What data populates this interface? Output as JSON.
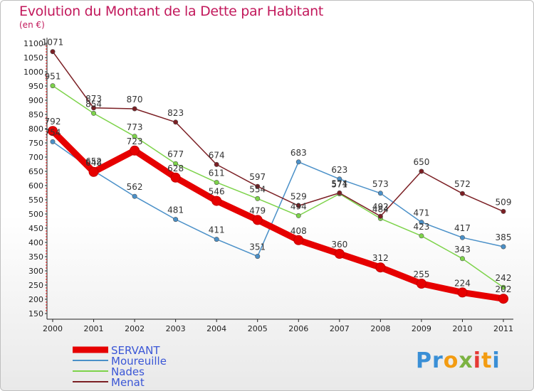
{
  "title": "Evolution du Montant de la Dette par Habitant",
  "subtitle": "(en €)",
  "logo": {
    "letters": [
      "P",
      "r",
      "o",
      "x",
      "i",
      "t",
      "i"
    ],
    "colors": [
      "#3a8fd6",
      "#3a8fd6",
      "#f39c12",
      "#7cb342",
      "#e53935",
      "#f39c12",
      "#3a8fd6"
    ]
  },
  "chart_data": {
    "type": "line",
    "x": [
      "2000",
      "2001",
      "2002",
      "2003",
      "2004",
      "2005",
      "2006",
      "2007",
      "2008",
      "2009",
      "2010",
      "2011"
    ],
    "ylim": [
      150,
      1100
    ],
    "yticks": [
      150,
      200,
      250,
      300,
      350,
      400,
      450,
      500,
      550,
      600,
      650,
      700,
      750,
      800,
      850,
      900,
      950,
      1000,
      1050,
      1100
    ],
    "grid": false,
    "legend_position": "bottom-left",
    "series": [
      {
        "name": "Moureuille",
        "color": "#4a90c8",
        "values": [
          754,
          652,
          562,
          481,
          411,
          351,
          683,
          623,
          573,
          471,
          417,
          385
        ],
        "labels": [
          "754",
          "652",
          "562",
          "481",
          "411",
          "351",
          "683",
          "623",
          "573",
          "471",
          "417",
          "385"
        ]
      },
      {
        "name": "Nades",
        "color": "#7dd34a",
        "values": [
          951,
          854,
          773,
          677,
          611,
          554,
          494,
          571,
          484,
          423,
          343,
          242
        ],
        "labels": [
          "951",
          "854",
          "773",
          "677",
          "611",
          "554",
          "494",
          "571",
          "484",
          "423",
          "343",
          "242"
        ]
      },
      {
        "name": "Menat",
        "color": "#7b1f24",
        "values": [
          1071,
          873,
          870,
          823,
          674,
          597,
          529,
          574,
          492,
          650,
          572,
          509
        ],
        "labels": [
          "1071",
          "873",
          "870",
          "823",
          "674",
          "597",
          "529",
          "574",
          "492",
          "650",
          "572",
          "509"
        ]
      },
      {
        "name": "SERVANT",
        "color": "#e60000",
        "values": [
          792,
          648,
          723,
          628,
          546,
          479,
          408,
          360,
          312,
          255,
          224,
          202
        ],
        "labels": [
          "792",
          "648",
          "723",
          "628",
          "546",
          "479",
          "408",
          "360",
          "312",
          "255",
          "224",
          "202"
        ]
      }
    ],
    "legend_order": [
      "SERVANT",
      "Moureuille",
      "Nades",
      "Menat"
    ]
  }
}
